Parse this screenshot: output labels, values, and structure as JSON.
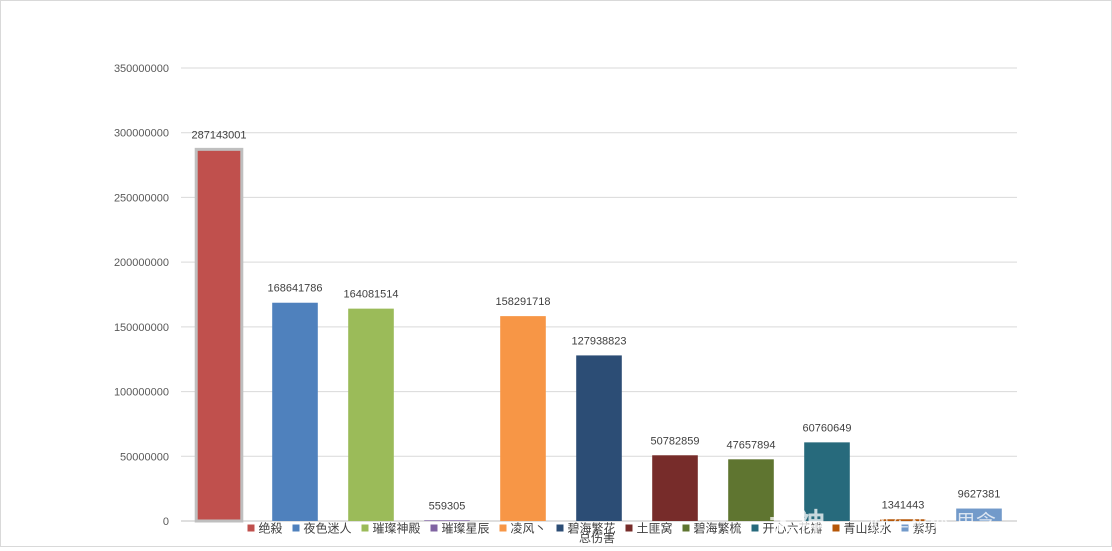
{
  "chart_data": {
    "type": "bar",
    "categories": [
      "绝殺",
      "夜色迷人",
      "璀璨神殿",
      "璀璨星辰",
      "凌风丶",
      "碧海繁花",
      "土匪窝",
      "碧海繁梳",
      "开心六花瓣",
      "青山绿水",
      "紫玥"
    ],
    "values": [
      287143001,
      168641786,
      164081514,
      559305,
      158291718,
      127938823,
      50782859,
      47657894,
      60760649,
      1341443,
      9627381
    ],
    "value_labels": [
      "287143001",
      "168641786",
      "164081514",
      "559305",
      "158291718",
      "127938823",
      "50782859",
      "47657894",
      "60760649",
      "1341443",
      "9627381"
    ],
    "colors": [
      "#c0504d",
      "#4f81bd",
      "#9bbb59",
      "#8064a2",
      "#f79646",
      "#2c4d75",
      "#772c2a",
      "#5f7530",
      "#276a7c",
      "#b65708",
      "#729aca"
    ],
    "xlabel": "总伤害",
    "ylabel": "",
    "ylim": [
      0,
      350000000
    ],
    "yticks": [
      "0",
      "50000000",
      "100000000",
      "150000000",
      "200000000",
      "250000000",
      "300000000",
      "350000000"
    ],
    "grid": true,
    "legend_position": "bottom",
    "selected_index": 0
  },
  "watermark": {
    "logo_text": "大神",
    "author_text": "@军机处-思念"
  }
}
